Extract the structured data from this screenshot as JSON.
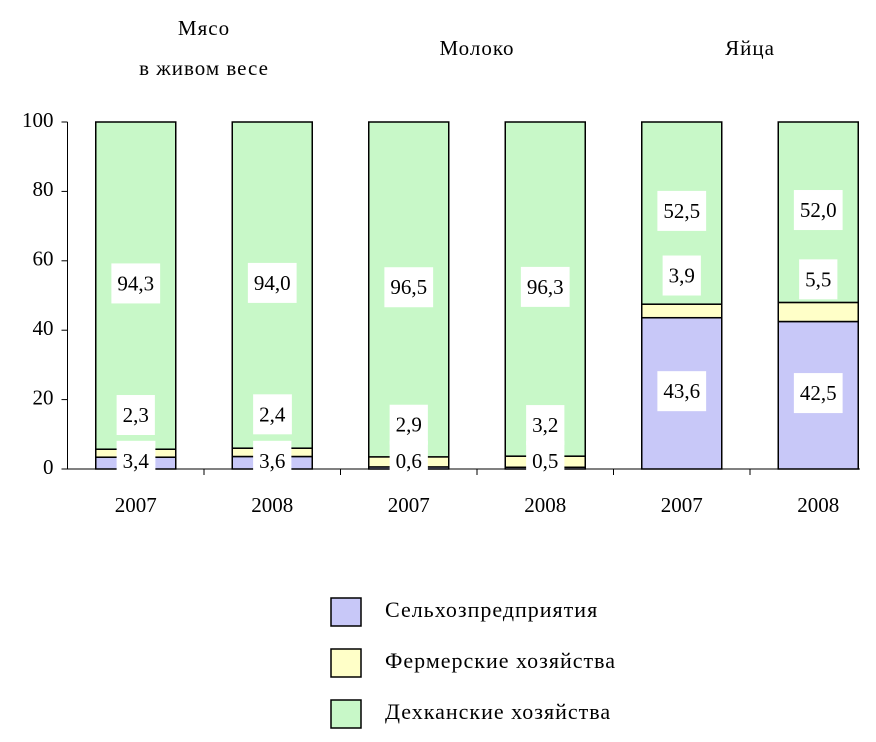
{
  "chart_data": {
    "type": "stacked_bar",
    "groups": [
      [
        "Мясо",
        "в живом весе"
      ],
      [
        "Молоко"
      ],
      [
        "Яйца"
      ]
    ],
    "categories": [
      "2007",
      "2008",
      "2007",
      "2008",
      "2007",
      "2008"
    ],
    "series": [
      {
        "name": "Сельхозпредприятия",
        "color": "#c8c8f8",
        "values": [
          3.4,
          3.6,
          0.6,
          0.5,
          43.6,
          42.5
        ],
        "value_labels": [
          "3,4",
          "3,6",
          "0,6",
          "0,5",
          "43,6",
          "42,5"
        ]
      },
      {
        "name": "Фермерские хозяйства",
        "color": "#ffffc8",
        "values": [
          2.3,
          2.4,
          2.9,
          3.2,
          3.9,
          5.5
        ],
        "value_labels": [
          "2,3",
          "2,4",
          "2,9",
          "3,2",
          "3,9",
          "5,5"
        ]
      },
      {
        "name": "Дехканские хозяйства",
        "color": "#c8f8c8",
        "values": [
          94.3,
          94.0,
          96.5,
          96.3,
          52.5,
          52.0
        ],
        "value_labels": [
          "94,3",
          "94,0",
          "96,5",
          "96,3",
          "52,5",
          "52,0"
        ]
      }
    ],
    "ylim": [
      0,
      100
    ],
    "yticks": [
      0,
      20,
      40,
      60,
      80,
      100
    ],
    "legend": "bottom"
  }
}
